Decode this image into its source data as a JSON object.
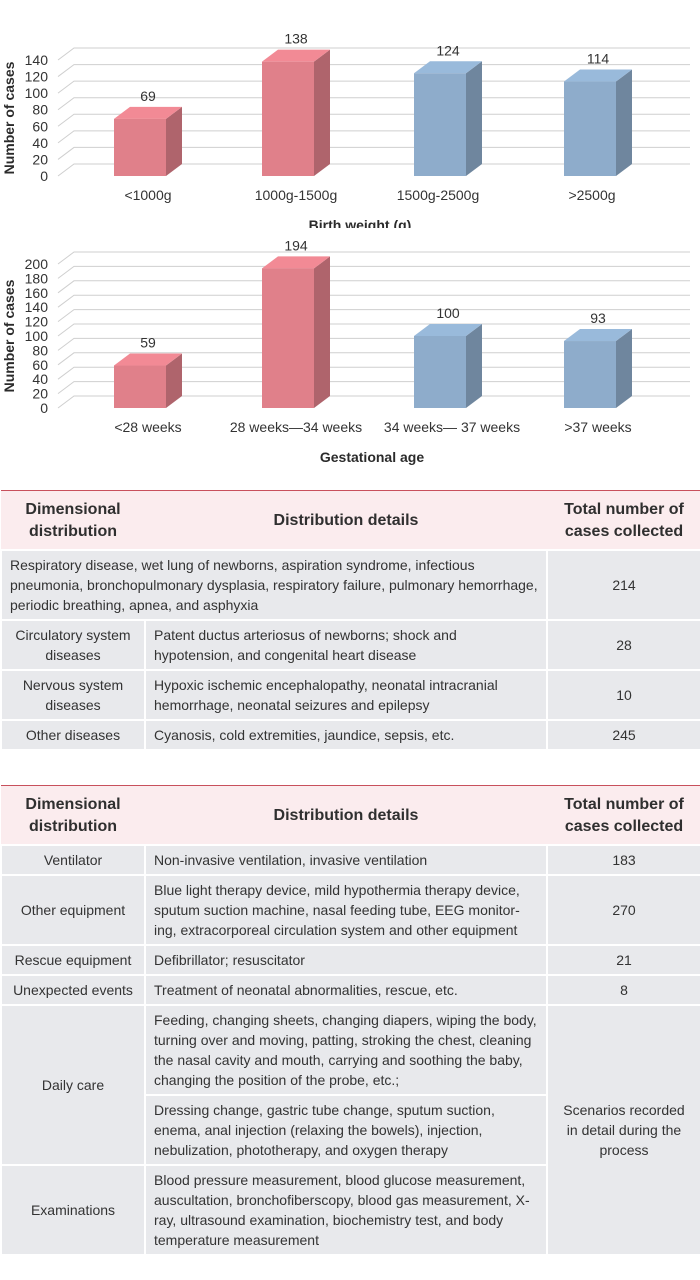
{
  "chart_data": [
    {
      "type": "bar",
      "title": "",
      "xlabel": "Birth weight (g)",
      "ylabel": "Number of cases",
      "ylim": [
        0,
        140
      ],
      "yticks": [
        0,
        20,
        40,
        60,
        80,
        100,
        120,
        140
      ],
      "categories": [
        "<1000g",
        "1000g-1500g",
        "1500g-2500g",
        ">2500g"
      ],
      "values": [
        69,
        138,
        124,
        114
      ],
      "colors": [
        "#e0808a",
        "#e0808a",
        "#8eaccb",
        "#8eaccb"
      ],
      "grid": true,
      "style": "3d"
    },
    {
      "type": "bar",
      "title": "",
      "xlabel": "Gestational age",
      "ylabel": "Number of cases",
      "ylim": [
        0,
        200
      ],
      "yticks": [
        0,
        20,
        40,
        60,
        80,
        100,
        120,
        140,
        160,
        180,
        200
      ],
      "categories": [
        "<28 weeks",
        "28 weeks—34 weeks",
        "34 weeks— 37 weeks",
        ">37 weeks"
      ],
      "values": [
        59,
        194,
        100,
        93
      ],
      "colors": [
        "#e0808a",
        "#e0808a",
        "#8eaccb",
        "#8eaccb"
      ],
      "grid": true,
      "style": "3d"
    }
  ],
  "table1": {
    "headers": [
      "Dimensional distribution",
      "Distribution details",
      "Total number of cases collected"
    ],
    "rows": [
      {
        "details": "Respiratory disease, wet lung of newborns, aspiration syndrome, infectious pneumonia, bronchopulmonary dysplasia, respiratory failure, pulmonary hemorrhage, periodic breathing, apnea, and asphyxia",
        "total": "214"
      },
      {
        "category": "Circulatory system diseases",
        "details": "Patent ductus arteriosus of newborns; shock and hypotension, and congenital heart disease",
        "total": "28"
      },
      {
        "category": "Nervous system diseases",
        "details": "Hypoxic ischemic encephalopathy, neonatal intracranial hemorrhage, neonatal seizures and epilepsy",
        "total": "10"
      },
      {
        "category": "Other diseases",
        "details": "Cyanosis, cold extremities, jaundice, sepsis, etc.",
        "total": "245"
      }
    ]
  },
  "table2": {
    "headers": [
      "Dimensional distribution",
      "Distribution details",
      "Total number of cases collected"
    ],
    "rows": [
      {
        "category": "Ventilator",
        "details": "Non-invasive ventilation, invasive ventilation",
        "total": "183"
      },
      {
        "category": "Other equipment",
        "details": "Blue light therapy device, mild hypothermia therapy device, sputum suction machine, nasal feeding tube, EEG monitor-ing, extracorporeal circulation system and other equipment",
        "total": "270"
      },
      {
        "category": "Rescue equipment",
        "details": "Defibrillator; resuscitator",
        "total": "21"
      },
      {
        "category": "Unexpected events",
        "details": "Treatment of neonatal abnormalities, rescue, etc.",
        "total": "8"
      },
      {
        "category": "Daily care",
        "details": "Feeding, changing sheets, changing diapers, wiping the body, turning over and moving, patting, stroking the chest, cleaning the nasal cavity and mouth, carrying and soothing the baby, changing the position of the probe, etc.;"
      },
      {
        "details": "Dressing change, gastric tube change, sputum suction, enema, anal injection (relaxing the bowels), injection, nebulization, phototherapy, and oxygen therapy"
      },
      {
        "category": "Examinations",
        "details": "Blood pressure measurement, blood glucose measurement, auscultation, bronchofiberscopy, blood gas measurement, X-ray, ultrasound examination, biochemistry test, and body temperature measurement"
      }
    ],
    "merged_total": "Scenarios recorded in detail during the process"
  }
}
